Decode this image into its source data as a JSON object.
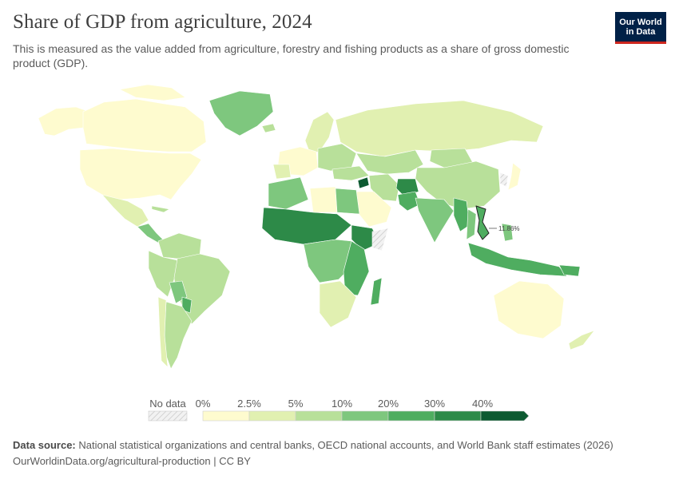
{
  "header": {
    "title": "Share of GDP from agriculture, 2024",
    "subtitle": "This is measured as the value added from agriculture, forestry and fishing products as a share of gross domestic product (GDP).",
    "logo_line1": "Our World",
    "logo_line2": "in Data"
  },
  "map": {
    "highlighted_label": "11.86%",
    "colors": [
      "#fefbcf",
      "#e1f0b1",
      "#b8e09a",
      "#7ec77e",
      "#4fad60",
      "#2d8a48",
      "#0d5a31"
    ],
    "no_data_color": "#e5e5e5"
  },
  "legend": {
    "no_data_label": "No data",
    "ticks": [
      "0%",
      "2.5%",
      "5%",
      "10%",
      "20%",
      "30%",
      "40%"
    ]
  },
  "footer": {
    "source_label": "Data source:",
    "source_text": "National statistical organizations and central banks, OECD national accounts, and World Bank staff estimates (2026)",
    "url_text": "OurWorldinData.org/agricultural-production | CC BY"
  }
}
